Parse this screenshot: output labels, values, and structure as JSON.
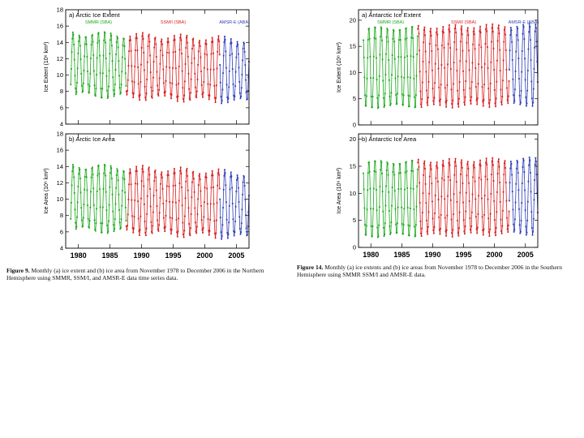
{
  "colors": {
    "smmr": "#1aa81a",
    "ssmi": "#d81e1e",
    "amsr": "#2f3fb8",
    "axis": "#000000"
  },
  "figure9": {
    "caption_label": "Figure 9.",
    "caption_text": " Monthly (a) ice extent and (b) ice area from November 1978 to December 2006 in the Northern Hemisphere using SMMR, SSM/I, and AMSR-E data time series data."
  },
  "figure14": {
    "caption_label": "Figure 14.",
    "caption_text": " Monthly (a) ice extents and (b) ice areas from November 1978 to December 2006 in the Southern Hemisphere using SMMR SSM/I and AMSR-E data."
  },
  "chart_data": [
    {
      "id": "arctic-extent",
      "type": "line",
      "title": "a) Arctic Ice Extent",
      "ylabel": "Ice Extent (10⁶ km²)",
      "ylim": [
        4,
        18
      ],
      "yticks": [
        4,
        6,
        8,
        10,
        12,
        14,
        16,
        18
      ],
      "xlim": [
        1978,
        2007
      ],
      "xticks": [
        1980,
        1985,
        1990,
        1995,
        2000,
        2005
      ],
      "xticklabels": [],
      "annual": {
        "max": 15.2,
        "min": 7.6,
        "trend_per_year": -0.03
      },
      "series": [
        {
          "name": "SMMR (SBA)",
          "color_key": "smmr",
          "start": 1978.8,
          "end": 1987.6
        },
        {
          "name": "SSM/I (SBA)",
          "color_key": "ssmi",
          "start": 1987.6,
          "end": 2002.4
        },
        {
          "name": "AMSR-E (ABA)",
          "color_key": "amsr",
          "start": 2002.4,
          "end": 2007.0
        }
      ]
    },
    {
      "id": "arctic-area",
      "type": "line",
      "title": "b) Arctic Ice Area",
      "ylabel": "Ice Area (10⁶ km²)",
      "ylim": [
        4,
        18
      ],
      "yticks": [
        4,
        6,
        8,
        10,
        12,
        14,
        16,
        18
      ],
      "xlim": [
        1978,
        2007
      ],
      "xticks": [
        1980,
        1985,
        1990,
        1995,
        2000,
        2005
      ],
      "xticklabels": [
        "1980",
        "1985",
        "1990",
        "1995",
        "2000",
        "2005"
      ],
      "annual": {
        "max": 14.2,
        "min": 6.3,
        "trend_per_year": -0.035
      },
      "series": [
        {
          "name": "",
          "color_key": "smmr",
          "start": 1978.8,
          "end": 1987.6
        },
        {
          "name": "",
          "color_key": "ssmi",
          "start": 1987.6,
          "end": 2002.4
        },
        {
          "name": "",
          "color_key": "amsr",
          "start": 2002.4,
          "end": 2007.0
        }
      ]
    },
    {
      "id": "antarctic-extent",
      "type": "line",
      "title": "a) Antarctic Ice Extent",
      "ylabel": "Ice Extent (10⁶ km²)",
      "ylim": [
        0,
        22
      ],
      "yticks": [
        0,
        5,
        10,
        15,
        20
      ],
      "xlim": [
        1978,
        2007
      ],
      "xticks": [
        1980,
        1985,
        1990,
        1995,
        2000,
        2005
      ],
      "xticklabels": [],
      "annual": {
        "max": 18.5,
        "min": 3.3,
        "trend_per_year": 0.02
      },
      "series": [
        {
          "name": "SMMR (SBA)",
          "color_key": "smmr",
          "start": 1978.8,
          "end": 1987.6
        },
        {
          "name": "SSM/I (SBA)",
          "color_key": "ssmi",
          "start": 1987.6,
          "end": 2002.4
        },
        {
          "name": "AMSR-E (ABA)",
          "color_key": "amsr",
          "start": 2002.4,
          "end": 2007.0
        }
      ]
    },
    {
      "id": "antarctic-area",
      "type": "line",
      "title": "b) Antarctic Ice Area",
      "ylabel": "Ice Area (10⁶ km²)",
      "ylim": [
        0,
        21
      ],
      "yticks": [
        0,
        5,
        10,
        15,
        20
      ],
      "xlim": [
        1978,
        2007
      ],
      "xticks": [
        1980,
        1985,
        1990,
        1995,
        2000,
        2005
      ],
      "xticklabels": [
        "1980",
        "1985",
        "1990",
        "1995",
        "2000",
        "2005"
      ],
      "annual": {
        "max": 15.8,
        "min": 2.0,
        "trend_per_year": 0.02
      },
      "series": [
        {
          "name": "",
          "color_key": "smmr",
          "start": 1978.8,
          "end": 1987.6
        },
        {
          "name": "",
          "color_key": "ssmi",
          "start": 1987.6,
          "end": 2002.4
        },
        {
          "name": "",
          "color_key": "amsr",
          "start": 2002.4,
          "end": 2007.0
        }
      ]
    }
  ]
}
